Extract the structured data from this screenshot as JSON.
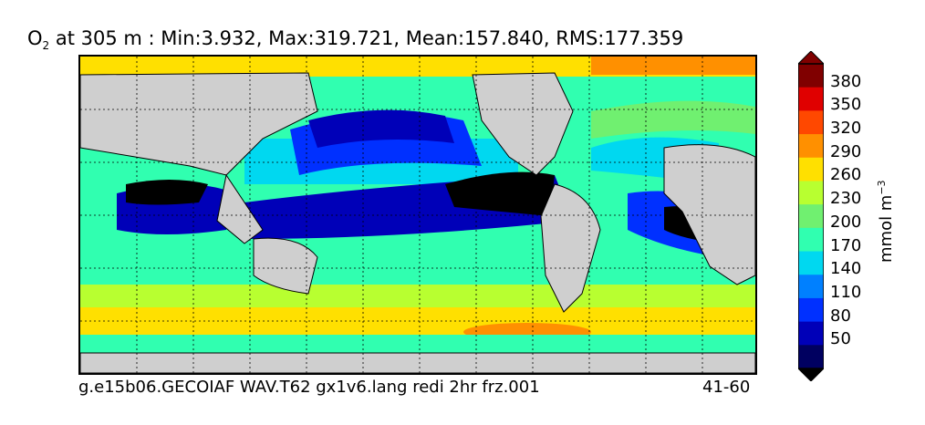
{
  "title": {
    "species_main": "O",
    "species_sub": "2",
    "rest": " at 305 m : Min:3.932, Max:319.721, Mean:157.840, RMS:177.359"
  },
  "footer": {
    "case_name": "g.e15b06.GECOIAF WAV.T62 gx1v6.lang redi 2hr frz.001",
    "years": "41-60"
  },
  "colorbar": {
    "unit_main": "mmol m",
    "unit_sup": "−3",
    "tick_labels": [
      "380",
      "350",
      "320",
      "290",
      "260",
      "230",
      "200",
      "170",
      "140",
      "110",
      "80",
      "50"
    ],
    "bands": [
      "#000060",
      "#0000b8",
      "#0030ff",
      "#0080ff",
      "#00d8f0",
      "#30ffb0",
      "#70f070",
      "#b8ff30",
      "#ffe000",
      "#ff9000",
      "#ff4800",
      "#e00000",
      "#800000"
    ],
    "colors": {
      "land": "#cfcfcf",
      "low": "#000000"
    }
  }
}
